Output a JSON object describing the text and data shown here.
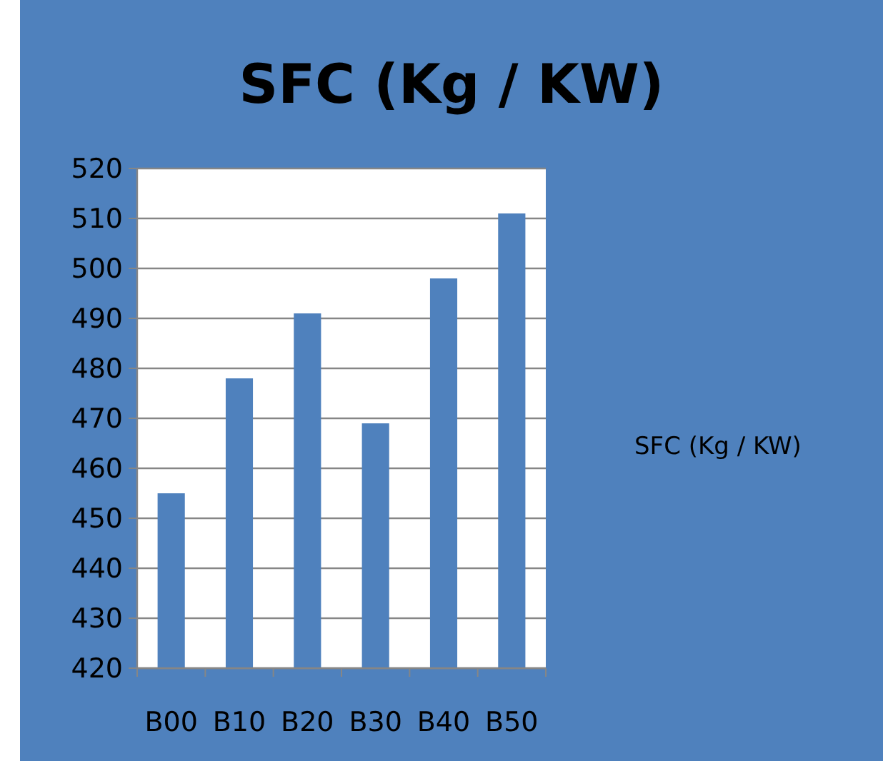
{
  "chart_data": {
    "type": "bar",
    "title": "SFC (Kg / KW)",
    "categories": [
      "B00",
      "B10",
      "B20",
      "B30",
      "B40",
      "B50"
    ],
    "series": [
      {
        "name": "SFC (Kg / KW)",
        "color": "#4f81bd",
        "values": [
          455,
          478,
          491,
          469,
          498,
          511
        ]
      }
    ],
    "ylim": [
      420,
      520
    ],
    "yticks": [
      420,
      430,
      440,
      450,
      460,
      470,
      480,
      490,
      500,
      510,
      520
    ],
    "grid": "y",
    "legend": "right"
  }
}
